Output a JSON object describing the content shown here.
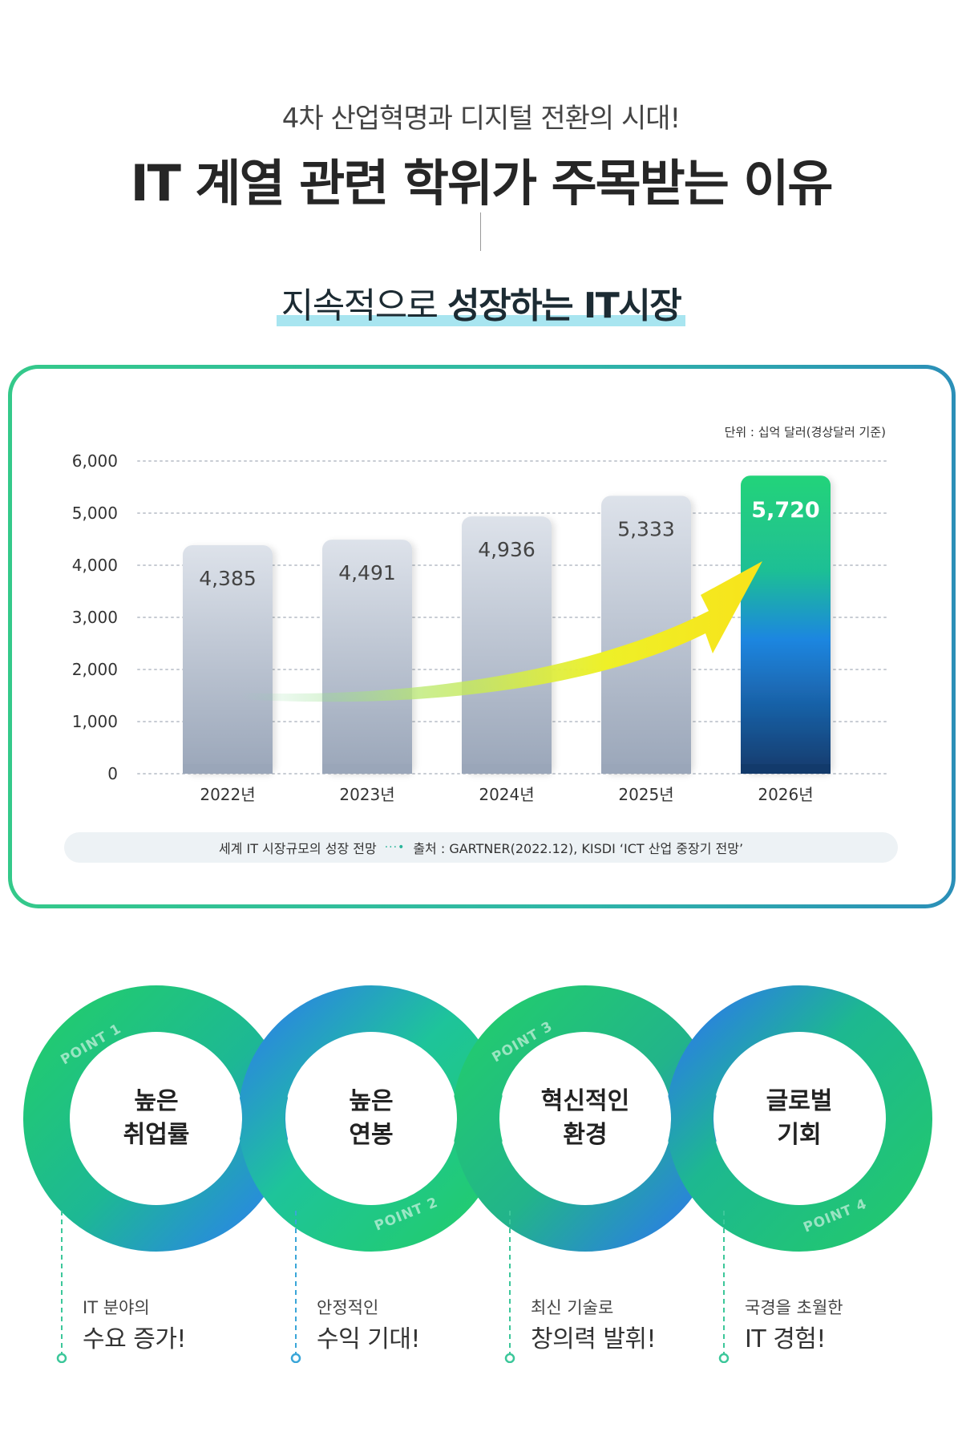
{
  "header": {
    "subtitle": "4차 산업혁명과 디지털 전환의 시대!",
    "title": "IT 계열 관련 학위가 주목받는 이유"
  },
  "section": {
    "title_light": "지속적으로 ",
    "title_bold": "성장하는 IT시장"
  },
  "chart_data": {
    "type": "bar",
    "categories": [
      "2022년",
      "2023년",
      "2024년",
      "2025년",
      "2026년"
    ],
    "values": [
      4385,
      4491,
      4936,
      5333,
      5720
    ],
    "value_labels": [
      "4,385",
      "4,491",
      "4,936",
      "5,333",
      "5,720"
    ],
    "ylim": [
      0,
      6000
    ],
    "yticks": [
      0,
      1000,
      2000,
      3000,
      4000,
      5000,
      6000
    ],
    "ytick_labels": [
      "0",
      "1,000",
      "2,000",
      "3,000",
      "4,000",
      "5,000",
      "6,000"
    ],
    "unit": "단위 : 십억 달러(경상달러 기준)",
    "grid": true,
    "highlight_index": 4,
    "colors": {
      "bar_top": "#dde2ea",
      "bar_bottom": "#9aa6b9",
      "highlight_top": "#22d37a",
      "highlight_mid": "#1f86e0",
      "highlight_bottom": "#123a6b",
      "arrow": "#f7e81c"
    }
  },
  "source": {
    "title": "세계 IT 시장규모의 성장 전망",
    "text": "출처 : GARTNER(2022.12), KISDI ‘ICT 산업 중장기 전망’"
  },
  "points": [
    {
      "tag": "POINT 1",
      "label_line1": "높은",
      "label_line2": "취업률",
      "desc_small": "IT 분야의",
      "desc_big": "수요 증가!"
    },
    {
      "tag": "POINT 2",
      "label_line1": "높은",
      "label_line2": "연봉",
      "desc_small": "안정적인",
      "desc_big": "수익 기대!"
    },
    {
      "tag": "POINT 3",
      "label_line1": "혁신적인",
      "label_line2": "환경",
      "desc_small": "최신 기술로",
      "desc_big": "창의력 발휘!"
    },
    {
      "tag": "POINT 4",
      "label_line1": "글로벌",
      "label_line2": "기회",
      "desc_small": "국경을 초월한",
      "desc_big": "IT 경험!"
    }
  ]
}
